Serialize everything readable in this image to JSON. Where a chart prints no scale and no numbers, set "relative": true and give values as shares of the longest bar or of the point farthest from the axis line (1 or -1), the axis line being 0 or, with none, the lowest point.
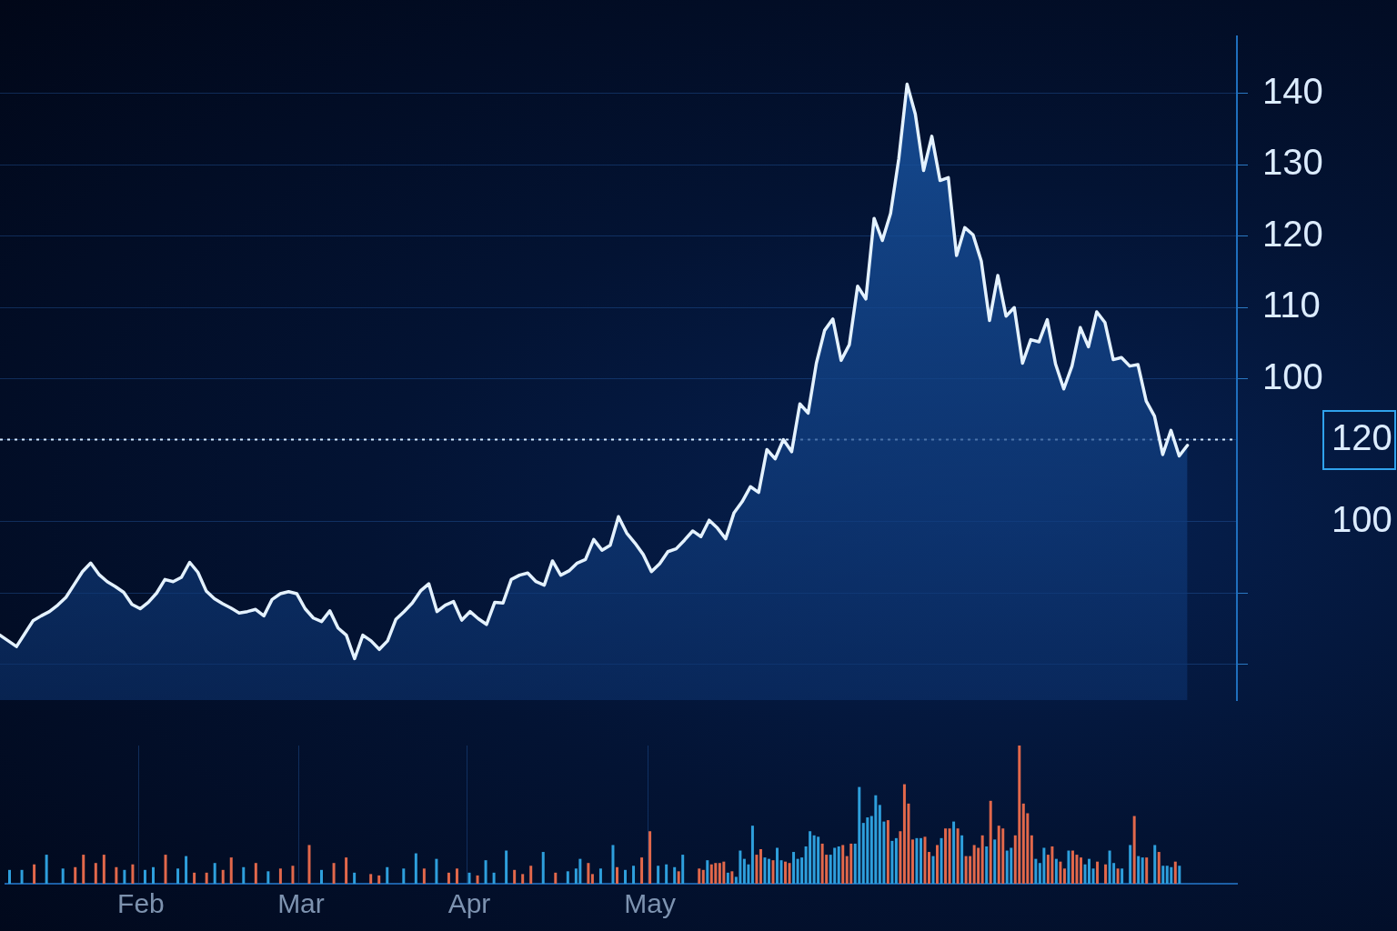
{
  "chart_data": [
    {
      "type": "area",
      "color": "#e4f2ff",
      "categories": [
        null,
        null,
        null,
        null,
        null,
        null,
        null,
        null,
        null,
        null,
        null,
        null,
        null,
        null,
        null,
        null,
        null,
        null,
        null,
        null,
        null,
        null,
        null,
        null,
        null,
        null,
        null,
        null,
        null,
        null,
        null,
        null,
        null,
        null,
        null,
        null,
        null,
        null,
        null,
        null,
        null,
        null,
        null,
        null,
        null,
        null,
        null,
        null,
        null,
        null,
        null,
        null,
        null,
        null,
        null,
        null,
        null,
        null,
        null,
        null,
        null,
        null,
        null,
        null,
        null,
        null,
        null,
        null,
        null,
        null,
        null,
        null,
        null,
        null,
        null,
        null,
        null,
        null,
        null,
        null,
        null,
        null,
        null,
        null,
        null,
        null,
        null,
        null,
        null,
        null,
        null,
        null,
        null,
        null,
        null,
        null,
        null,
        null,
        null,
        null,
        null,
        null,
        null,
        null,
        null,
        null,
        null,
        null,
        null,
        null,
        null,
        null,
        null,
        null,
        null,
        null,
        null,
        null,
        null,
        null,
        null,
        null,
        null,
        null,
        null,
        null,
        null,
        null,
        null,
        null,
        null,
        null,
        null,
        null,
        null,
        null,
        null,
        null,
        null,
        null,
        null,
        null,
        null,
        null,
        null,
        null,
        null,
        null,
        null,
        null,
        null
      ],
      "values": [
        64.1,
        63.3,
        62.5,
        64.3,
        66.1,
        66.8,
        67.4,
        68.3,
        69.4,
        71.2,
        73.0,
        74.2,
        72.6,
        71.6,
        70.9,
        70.1,
        68.4,
        67.8,
        68.7,
        70.0,
        71.9,
        71.6,
        72.2,
        74.3,
        72.9,
        70.3,
        69.2,
        68.5,
        67.9,
        67.2,
        67.4,
        67.7,
        66.8,
        69.1,
        69.9,
        70.2,
        69.9,
        67.8,
        66.5,
        66.0,
        67.5,
        65.1,
        64.1,
        60.8,
        64.1,
        63.3,
        62.1,
        63.3,
        66.3,
        67.4,
        68.6,
        70.3,
        71.3,
        67.4,
        68.3,
        68.8,
        66.2,
        67.4,
        66.4,
        65.6,
        68.7,
        68.6,
        71.9,
        72.5,
        72.8,
        71.6,
        71.1,
        74.5,
        72.5,
        73.1,
        74.2,
        74.7,
        77.5,
        76.0,
        76.7,
        80.7,
        78.4,
        77.0,
        75.4,
        73.0,
        74.1,
        75.8,
        76.2,
        77.4,
        78.7,
        77.9,
        80.2,
        79.1,
        77.6,
        81.2,
        82.8,
        84.9,
        84.1,
        90.1,
        88.8,
        91.5,
        89.8,
        96.5,
        95.2,
        102.2,
        106.8,
        108.4,
        102.6,
        104.8,
        113.0,
        111.2,
        122.5,
        119.4,
        123.2,
        130.9,
        141.3,
        137.1,
        129.2,
        134.0,
        127.8,
        128.2,
        117.3,
        121.2,
        120.2,
        116.5,
        108.2,
        114.5,
        108.8,
        110.0,
        102.2,
        105.5,
        105.2,
        108.3,
        102.1,
        98.6,
        101.8,
        107.2,
        104.5,
        109.4,
        107.9,
        102.7,
        103.0,
        101.8,
        102.0,
        96.9,
        94.8,
        89.4,
        92.8,
        89.2,
        90.7,
        null,
        null,
        null,
        null,
        null,
        null
      ],
      "ylim": [
        55,
        148
      ],
      "yticks": [
        {
          "value": 60,
          "label": null
        },
        {
          "value": 70,
          "label": null
        },
        100,
        110,
        120,
        130,
        140
      ],
      "y2lim": [
        56.5,
        218.3
      ],
      "y2ticks": [
        100,
        120
      ],
      "grid": "y",
      "tick_labels": "y",
      "ref_lines": [
        {
          "axis": "y2",
          "value": 120,
          "line_style": "dotted",
          "color": "#d4eaff"
        }
      ]
    },
    {
      "type": "bar",
      "relative": true,
      "categories": [
        null,
        null,
        null,
        null,
        null,
        null,
        null,
        null,
        null,
        null,
        null,
        null,
        null,
        null,
        null,
        null,
        null,
        null,
        null,
        null,
        null,
        null,
        null,
        null,
        null,
        null,
        null,
        null,
        null,
        null,
        null,
        null,
        null,
        "Feb",
        null,
        null,
        null,
        null,
        null,
        null,
        null,
        null,
        null,
        null,
        null,
        null,
        null,
        null,
        null,
        null,
        null,
        null,
        null,
        null,
        null,
        null,
        null,
        null,
        null,
        null,
        null,
        null,
        null,
        null,
        null,
        null,
        null,
        null,
        null,
        null,
        null,
        null,
        "Mar",
        null,
        null,
        null,
        null,
        null,
        null,
        null,
        null,
        null,
        null,
        null,
        null,
        null,
        null,
        null,
        null,
        null,
        null,
        null,
        null,
        null,
        null,
        null,
        null,
        null,
        null,
        null,
        null,
        null,
        null,
        null,
        null,
        null,
        null,
        null,
        null,
        null,
        null,
        null,
        null,
        "Apr",
        null,
        null,
        null,
        null,
        null,
        null,
        null,
        null,
        null,
        null,
        null,
        null,
        null,
        null,
        null,
        null,
        null,
        null,
        null,
        null,
        null,
        null,
        null,
        null,
        null,
        null,
        null,
        null,
        null,
        null,
        null,
        null,
        null,
        null,
        null,
        null,
        null,
        null,
        null,
        null,
        null,
        null,
        null,
        "May",
        null,
        null,
        null,
        null,
        null,
        null,
        null,
        null,
        null,
        null,
        null,
        null,
        null,
        null,
        null,
        null,
        null,
        null,
        null,
        null,
        null,
        null,
        null,
        null,
        null,
        null,
        null,
        null,
        null,
        null,
        null,
        null,
        null,
        null,
        null,
        null,
        null,
        null,
        null,
        null,
        null,
        null,
        null,
        null,
        null,
        null,
        null,
        null,
        null,
        null,
        null,
        null,
        null,
        null,
        null,
        null,
        null,
        null,
        null,
        null,
        null,
        null,
        null,
        null,
        null,
        null,
        null,
        null,
        null,
        null,
        null,
        null,
        null,
        null,
        null,
        null,
        null,
        null,
        null,
        null,
        null,
        null,
        null,
        null,
        null,
        null,
        null,
        null,
        null,
        null,
        null,
        null,
        null,
        null,
        null,
        null,
        null,
        null,
        null,
        null,
        null,
        null,
        null,
        null,
        null,
        null,
        null,
        null,
        null,
        null,
        null,
        null,
        null,
        null,
        null,
        null,
        null,
        null,
        null,
        null,
        null,
        null,
        null,
        null,
        null,
        null,
        null,
        null,
        null,
        null,
        null,
        null,
        null,
        null,
        null,
        null,
        null,
        null,
        null,
        null,
        null,
        null,
        null
      ],
      "series": [
        {
          "color": "#2e9fdc",
          "values": [
            null,
            0.1,
            null,
            null,
            0.1,
            null,
            null,
            null,
            null,
            null,
            0.21,
            null,
            null,
            null,
            0.11,
            null,
            null,
            null,
            null,
            null,
            null,
            null,
            null,
            null,
            null,
            null,
            null,
            null,
            null,
            0.1,
            null,
            null,
            null,
            null,
            0.1,
            null,
            0.12,
            null,
            null,
            null,
            null,
            null,
            0.11,
            null,
            0.2,
            null,
            null,
            null,
            null,
            null,
            null,
            0.15,
            null,
            null,
            null,
            null,
            null,
            null,
            0.12,
            null,
            null,
            null,
            null,
            null,
            0.09,
            null,
            null,
            null,
            null,
            null,
            null,
            null,
            null,
            null,
            null,
            null,
            null,
            0.1,
            null,
            null,
            null,
            null,
            null,
            null,
            null,
            0.08,
            null,
            null,
            null,
            null,
            null,
            null,
            null,
            0.12,
            null,
            null,
            null,
            0.11,
            null,
            null,
            0.22,
            null,
            null,
            null,
            null,
            0.18,
            null,
            null,
            null,
            null,
            null,
            null,
            null,
            0.08,
            null,
            null,
            null,
            0.17,
            null,
            0.08,
            null,
            null,
            0.24,
            null,
            null,
            null,
            null,
            null,
            null,
            null,
            null,
            0.23,
            null,
            null,
            null,
            null,
            null,
            0.09,
            null,
            0.11,
            0.18,
            null,
            null,
            null,
            null,
            0.11,
            null,
            null,
            0.28,
            null,
            null,
            0.1,
            null,
            0.13,
            null,
            null,
            null,
            null,
            null,
            0.13,
            null,
            0.14,
            null,
            0.12,
            null,
            0.21,
            null,
            null,
            null,
            null,
            null,
            0.17,
            null,
            null,
            null,
            null,
            0.08,
            null,
            0.05,
            0.24,
            0.18,
            0.14,
            0.42,
            null,
            null,
            0.19,
            0.18,
            null,
            0.26,
            0.17,
            null,
            null,
            0.23,
            0.18,
            0.19,
            0.27,
            0.38,
            0.35,
            0.34,
            null,
            null,
            0.21,
            0.26,
            0.27,
            null,
            null,
            null,
            0.29,
            0.7,
            0.44,
            0.48,
            0.49,
            0.64,
            0.57,
            0.45,
            null,
            0.31,
            0.33,
            null,
            null,
            null,
            null,
            0.33,
            0.33,
            null,
            null,
            0.2,
            null,
            0.33,
            null,
            null,
            0.45,
            null,
            0.35,
            null,
            null,
            null,
            null,
            null,
            0.27,
            null,
            0.32,
            null,
            null,
            0.24,
            0.26,
            null,
            null,
            null,
            null,
            null,
            0.18,
            0.15,
            0.26,
            null,
            null,
            0.18,
            null,
            null,
            0.24,
            null,
            null,
            null,
            0.14,
            0.18,
            0.11,
            null,
            null,
            null,
            0.24,
            0.15,
            null,
            0.11,
            null,
            0.28,
            null,
            0.2,
            0.19,
            null,
            null,
            0.28,
            null,
            0.13,
            0.13,
            0.12,
            null,
            0.13,
            null,
            null,
            null,
            null,
            null,
            null,
            null,
            null,
            null,
            null,
            null,
            null,
            null,
            null
          ]
        },
        {
          "color": "#e2684b",
          "values": [
            null,
            null,
            null,
            null,
            null,
            null,
            null,
            0.14,
            null,
            null,
            null,
            null,
            null,
            null,
            null,
            null,
            null,
            0.12,
            null,
            0.21,
            null,
            null,
            0.15,
            null,
            0.21,
            null,
            null,
            0.12,
            null,
            null,
            null,
            0.14,
            null,
            null,
            null,
            null,
            null,
            null,
            null,
            0.21,
            null,
            null,
            null,
            null,
            null,
            null,
            0.08,
            null,
            null,
            0.08,
            null,
            null,
            null,
            0.1,
            null,
            0.19,
            null,
            null,
            null,
            null,
            null,
            0.15,
            null,
            null,
            null,
            null,
            null,
            0.11,
            null,
            null,
            0.13,
            null,
            null,
            null,
            0.28,
            null,
            null,
            null,
            null,
            null,
            0.15,
            null,
            null,
            0.19,
            null,
            null,
            null,
            null,
            null,
            0.07,
            null,
            0.06,
            null,
            null,
            null,
            null,
            null,
            null,
            null,
            null,
            null,
            null,
            0.11,
            null,
            null,
            null,
            null,
            null,
            0.08,
            null,
            0.11,
            null,
            null,
            null,
            null,
            0.06,
            null,
            null,
            null,
            null,
            null,
            null,
            null,
            null,
            0.1,
            null,
            0.07,
            null,
            0.13,
            null,
            null,
            null,
            null,
            null,
            0.08,
            null,
            null,
            null,
            null,
            null,
            null,
            null,
            0.15,
            0.07,
            null,
            null,
            null,
            null,
            null,
            0.12,
            null,
            null,
            null,
            null,
            null,
            0.19,
            null,
            0.38,
            null,
            null,
            null,
            null,
            null,
            null,
            0.09,
            null,
            null,
            null,
            null,
            0.11,
            0.1,
            null,
            0.14,
            0.15,
            0.15,
            0.16,
            null,
            0.09,
            null,
            null,
            null,
            null,
            null,
            0.21,
            0.25,
            null,
            null,
            0.17,
            null,
            null,
            0.16,
            0.15,
            null,
            null,
            null,
            null,
            null,
            null,
            null,
            0.29,
            0.21,
            null,
            null,
            null,
            0.28,
            0.2,
            0.29,
            null,
            null,
            null,
            null,
            null,
            null,
            null,
            null,
            0.46,
            null,
            null,
            0.38,
            0.72,
            0.58,
            0.32,
            null,
            null,
            0.34,
            0.23,
            null,
            0.28,
            null,
            0.4,
            0.4,
            null,
            0.4,
            null,
            0.2,
            0.2,
            0.28,
            0.26,
            0.35,
            null,
            0.6,
            null,
            0.42,
            0.4,
            null,
            null,
            0.35,
            1,
            0.58,
            0.51,
            0.35,
            null,
            null,
            null,
            0.21,
            0.27,
            null,
            0.16,
            0.11,
            null,
            0.24,
            0.21,
            0.19,
            null,
            null,
            null,
            0.16,
            null,
            0.14,
            null,
            null,
            0.11,
            null,
            null,
            null,
            0.49,
            null,
            null,
            0.19,
            null,
            null,
            0.23,
            null,
            null,
            null,
            0.16,
            null,
            null,
            null,
            null,
            null,
            null,
            null,
            null,
            null,
            null,
            null,
            null,
            null,
            null,
            null
          ]
        }
      ],
      "grid": "x"
    }
  ]
}
